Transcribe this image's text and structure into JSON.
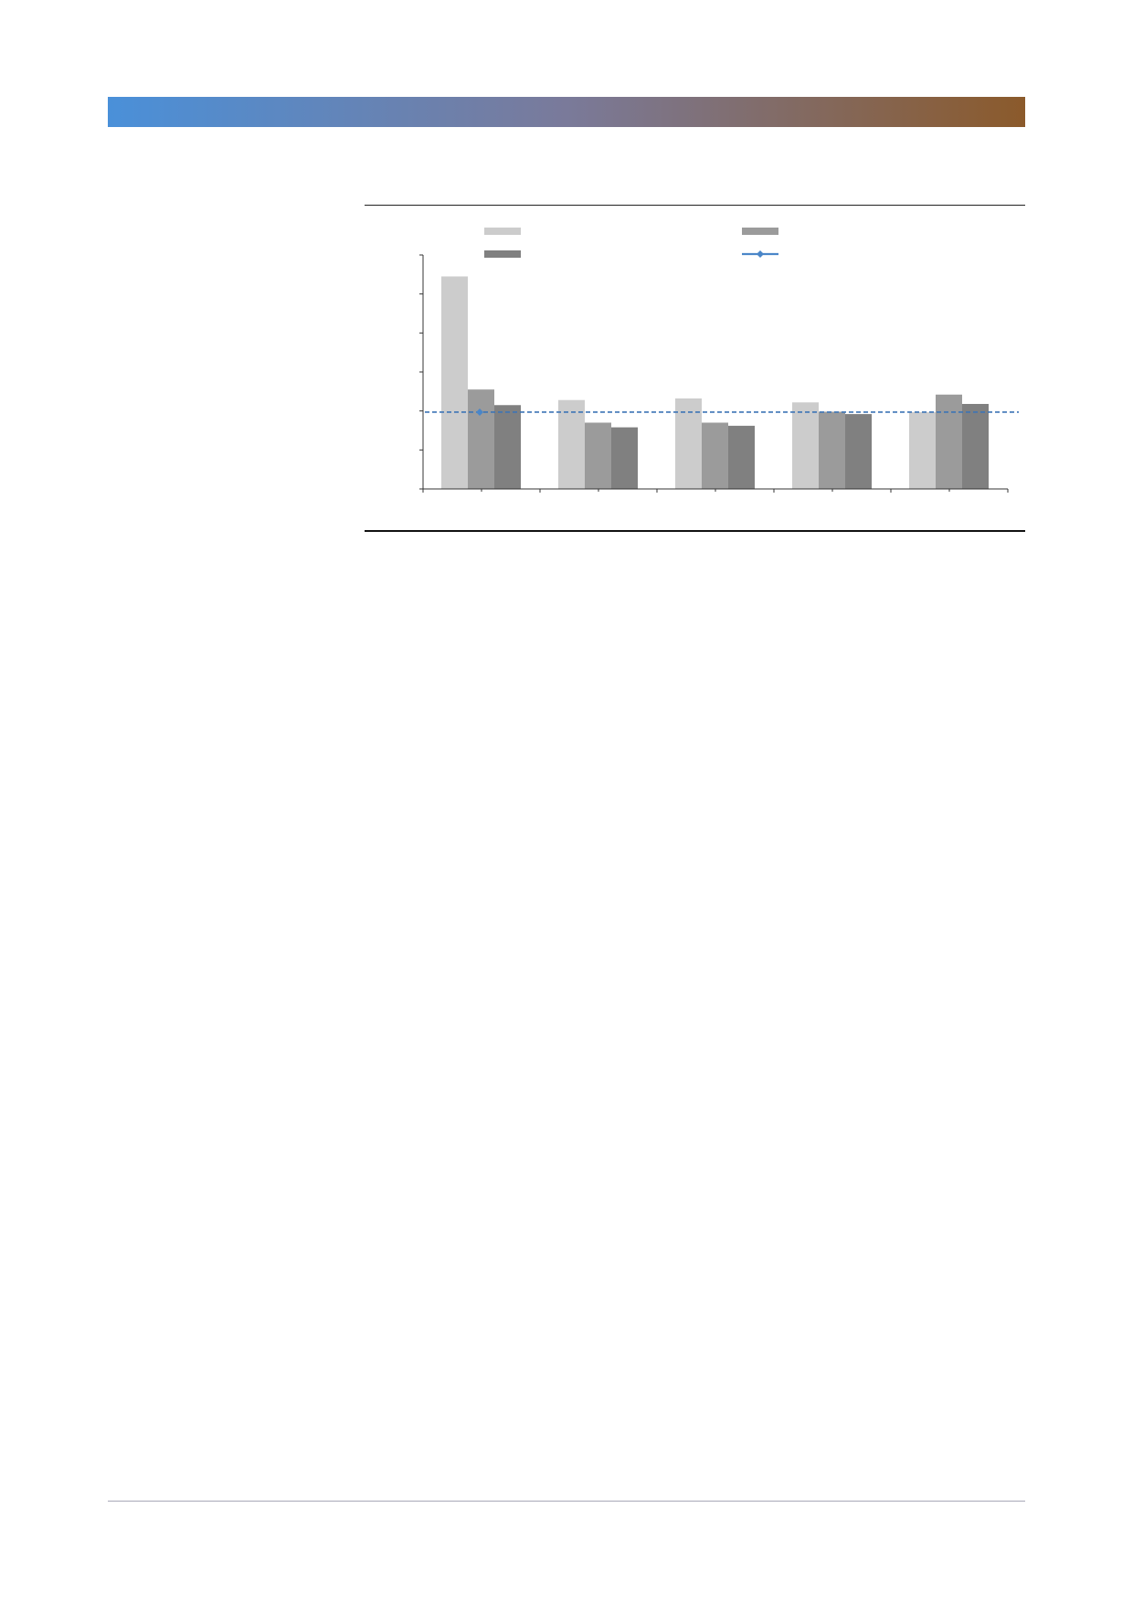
{
  "page": {
    "header_gradient": [
      "#4a90d9",
      "#7a7a9a",
      "#8b5a2b"
    ]
  },
  "chart_data": {
    "type": "bar",
    "categories": [
      "",
      "",
      "",
      "",
      ""
    ],
    "series": [
      {
        "color": "#cccccc",
        "values": [
          5.45,
          2.28,
          2.32,
          2.22,
          1.97
        ]
      },
      {
        "color": "#9b9b9b",
        "values": [
          2.55,
          1.7,
          1.7,
          1.98,
          2.42
        ]
      },
      {
        "color": "#808080",
        "values": [
          2.15,
          1.58,
          1.62,
          1.92,
          2.18
        ]
      }
    ],
    "reference_line": {
      "value": 1.97,
      "color": "#3d74b5",
      "style": "dashed",
      "marker": "diamond"
    },
    "ylim": [
      0,
      6
    ],
    "yticks": [
      0,
      1,
      2,
      3,
      4,
      5,
      6
    ],
    "legend": {
      "placement": "top",
      "entries": [
        {
          "color": "#cccccc",
          "kind": "bar"
        },
        {
          "color": "#9b9b9b",
          "kind": "bar"
        },
        {
          "color": "#808080",
          "kind": "bar"
        },
        {
          "color": "#4a86c8",
          "kind": "line-diamond"
        }
      ]
    },
    "grid": false,
    "xlabel": "",
    "ylabel": ""
  }
}
